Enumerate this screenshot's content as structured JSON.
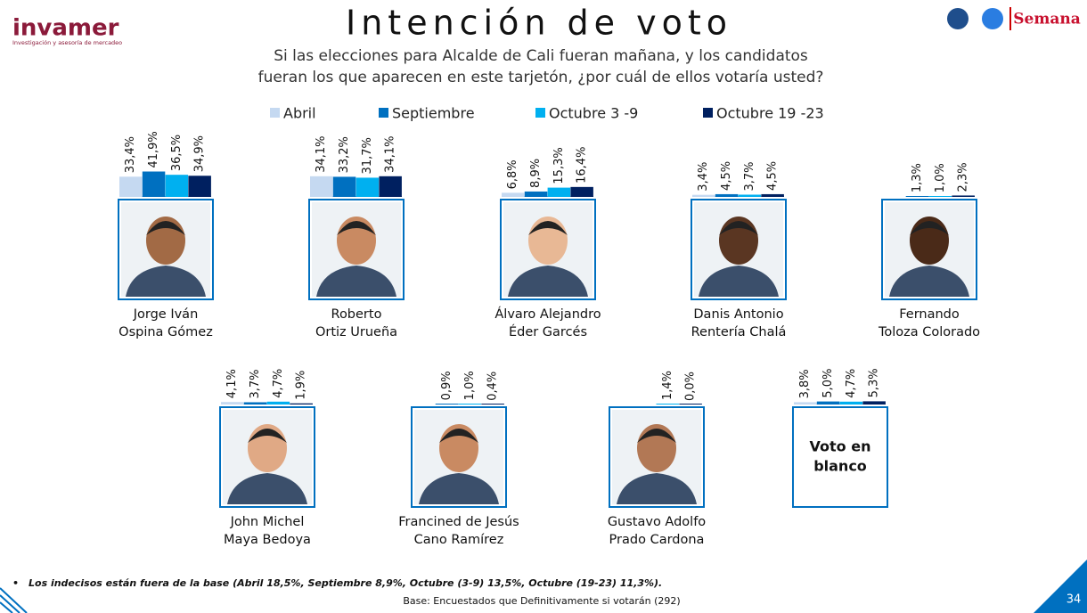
{
  "header": {
    "brand": "invamer",
    "tagline": "Investigación y asesoría de mercadeo",
    "partner": "Semana",
    "page": "34"
  },
  "chart_data": {
    "type": "bar",
    "title": "Intención de voto",
    "subtitle": [
      "Si las elecciones para Alcalde de Cali fueran mañana, y los candidatos",
      "fueran los que aparecen en este tarjetón, ¿por cuál de ellos votaría usted?"
    ],
    "categories": [
      [
        "Jorge Iván",
        "Ospina Gómez"
      ],
      [
        "Roberto",
        "Ortiz Urueña"
      ],
      [
        "Álvaro Alejandro",
        "Éder Garcés"
      ],
      [
        "Danis Antonio",
        "Rentería Chalá"
      ],
      [
        "Fernando",
        "Toloza Colorado"
      ],
      [
        "John Michel",
        "Maya Bedoya"
      ],
      [
        "Francined de Jesús",
        "Cano Ramírez"
      ],
      [
        "Gustavo Adolfo",
        "Prado Cardona"
      ],
      [
        "Voto en",
        "blanco"
      ]
    ],
    "series": [
      {
        "name": "Abril",
        "color": "#c5d9f1",
        "values": [
          33.4,
          34.1,
          6.8,
          3.4,
          null,
          4.1,
          null,
          null,
          3.8
        ],
        "value_labels": [
          "33,4%",
          "34,1%",
          "6,8%",
          "3,4%",
          null,
          "4,1%",
          null,
          null,
          "3,8%"
        ]
      },
      {
        "name": "Septiembre",
        "color": "#0070c0",
        "values": [
          41.9,
          33.2,
          8.9,
          4.5,
          1.3,
          3.7,
          0.9,
          null,
          5.0
        ],
        "value_labels": [
          "41,9%",
          "33,2%",
          "8,9%",
          "4,5%",
          "1,3%",
          "3,7%",
          "0,9%",
          null,
          "5,0%"
        ]
      },
      {
        "name": "Octubre 3 -9",
        "color": "#00b0f0",
        "values": [
          36.5,
          31.7,
          15.3,
          3.7,
          1.0,
          4.7,
          1.0,
          1.4,
          4.7
        ],
        "value_labels": [
          "36,5%",
          "31,7%",
          "15,3%",
          "3,7%",
          "1,0%",
          "4,7%",
          "1,0%",
          "1,4%",
          "4,7%"
        ]
      },
      {
        "name": "Octubre 19 -23",
        "color": "#002060",
        "values": [
          34.9,
          34.1,
          16.4,
          4.5,
          2.3,
          1.9,
          0.4,
          0.0,
          5.3
        ],
        "value_labels": [
          "34,9%",
          "34,1%",
          "16,4%",
          "4,5%",
          "2,3%",
          "1,9%",
          "0,4%",
          "0,0%",
          "5,3%"
        ]
      }
    ]
  },
  "notes": {
    "undecided": "Los indecisos están fuera de la base (Abril 18,5%, Septiembre 8,9%, Octubre (3-9) 13,5%, Octubre (19-23) 11,3%).",
    "base": "Base: Encuestados que Definitivamente si votarán (292)"
  }
}
